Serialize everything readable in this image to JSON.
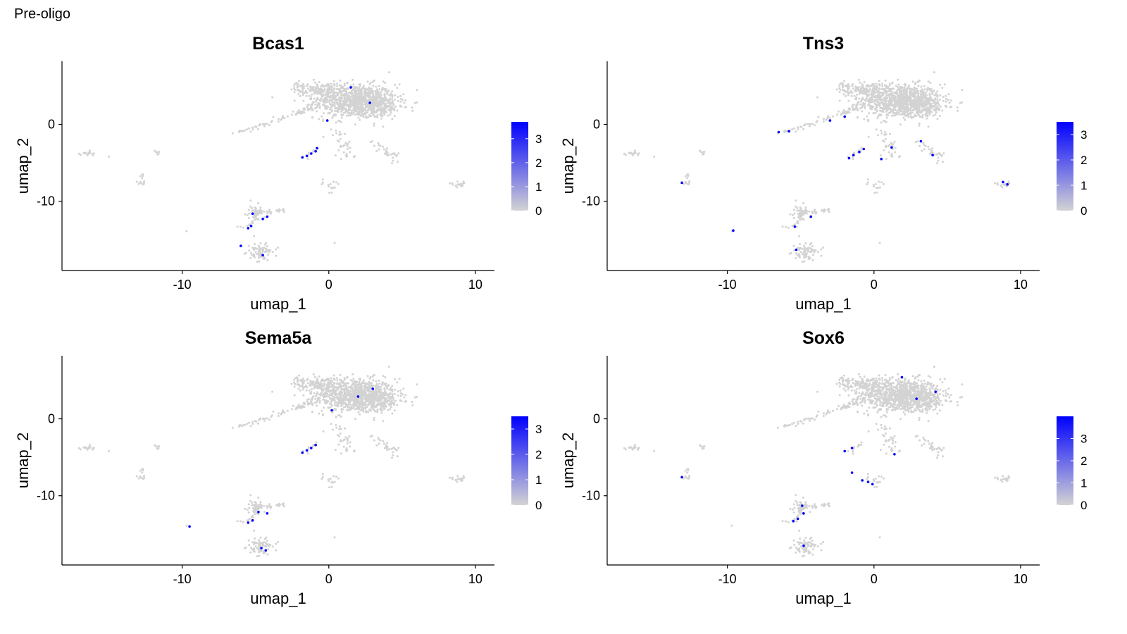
{
  "page_title": "Pre-oligo",
  "colors": {
    "low": "#d3d3d3",
    "high": "#0000ff",
    "axis": "#000000"
  },
  "chart_data": [
    {
      "type": "scatter",
      "title": "Bcas1",
      "xlabel": "umap_1",
      "ylabel": "umap_2",
      "xlim": [
        -18.2,
        11.3
      ],
      "ylim": [
        -19,
        8.2
      ],
      "xticks": [
        -10,
        0,
        10
      ],
      "yticks": [
        0,
        -10
      ],
      "grid": false,
      "legend": "right",
      "color_scale": {
        "min": 0,
        "max": 3.7,
        "ticks": [
          0,
          1,
          2,
          3
        ],
        "low": "#d3d3d3",
        "high": "#0000ff"
      },
      "expressing_points": [
        [
          -1.8,
          -4.3
        ],
        [
          -1.5,
          -4.1
        ],
        [
          -1.2,
          -3.8
        ],
        [
          -0.9,
          -3.5
        ],
        [
          -0.8,
          -3.1
        ],
        [
          -5.5,
          -13.5
        ],
        [
          -5.3,
          -13.2
        ],
        [
          -4.5,
          -12.3
        ],
        [
          -4.2,
          -12.0
        ],
        [
          -5.2,
          -11.6
        ],
        [
          -6.0,
          -15.8
        ],
        [
          -4.5,
          -17.0
        ],
        [
          2.8,
          2.8
        ],
        [
          1.5,
          4.8
        ],
        [
          -0.1,
          0.5
        ]
      ]
    },
    {
      "type": "scatter",
      "title": "Tns3",
      "xlabel": "umap_1",
      "ylabel": "umap_2",
      "xlim": [
        -18.2,
        11.3
      ],
      "ylim": [
        -19,
        8.2
      ],
      "xticks": [
        -10,
        0,
        10
      ],
      "yticks": [
        0,
        -10
      ],
      "grid": false,
      "legend": "right",
      "color_scale": {
        "min": 0,
        "max": 3.5,
        "ticks": [
          0,
          1,
          2,
          3
        ],
        "low": "#d3d3d3",
        "high": "#0000ff"
      },
      "expressing_points": [
        [
          -1.7,
          -4.4
        ],
        [
          -1.4,
          -4.0
        ],
        [
          -1.0,
          -3.6
        ],
        [
          -0.7,
          -3.2
        ],
        [
          -5.4,
          -13.3
        ],
        [
          -4.3,
          -12.0
        ],
        [
          -13.1,
          -7.6
        ],
        [
          -9.6,
          -13.8
        ],
        [
          8.8,
          -7.5
        ],
        [
          9.1,
          -7.8
        ],
        [
          -6.5,
          -1.0
        ],
        [
          -5.8,
          -0.9
        ],
        [
          -3.0,
          0.5
        ],
        [
          -2.0,
          1.0
        ],
        [
          0.5,
          -4.5
        ],
        [
          1.2,
          -3.0
        ],
        [
          3.2,
          -2.2
        ],
        [
          4.0,
          -4.0
        ],
        [
          -5.3,
          -16.3
        ]
      ]
    },
    {
      "type": "scatter",
      "title": "Sema5a",
      "xlabel": "umap_1",
      "ylabel": "umap_2",
      "xlim": [
        -18.2,
        11.3
      ],
      "ylim": [
        -19,
        8.2
      ],
      "xticks": [
        -10,
        0,
        10
      ],
      "yticks": [
        0,
        -10
      ],
      "grid": false,
      "legend": "right",
      "color_scale": {
        "min": 0,
        "max": 3.5,
        "ticks": [
          0,
          1,
          2,
          3
        ],
        "low": "#d3d3d3",
        "high": "#0000ff"
      },
      "expressing_points": [
        [
          -1.8,
          -4.4
        ],
        [
          -1.5,
          -4.1
        ],
        [
          -1.2,
          -3.8
        ],
        [
          -0.9,
          -3.4
        ],
        [
          -5.5,
          -13.5
        ],
        [
          -5.2,
          -13.2
        ],
        [
          -4.8,
          -12.1
        ],
        [
          -4.2,
          -12.3
        ],
        [
          -9.5,
          -14.0
        ],
        [
          -4.6,
          -16.8
        ],
        [
          -4.3,
          -17.1
        ],
        [
          3.0,
          3.9
        ],
        [
          0.2,
          1.1
        ],
        [
          2.0,
          2.9
        ]
      ]
    },
    {
      "type": "scatter",
      "title": "Sox6",
      "xlabel": "umap_1",
      "ylabel": "umap_2",
      "xlim": [
        -18.2,
        11.3
      ],
      "ylim": [
        -19,
        8.2
      ],
      "xticks": [
        -10,
        0,
        10
      ],
      "yticks": [
        0,
        -10
      ],
      "grid": false,
      "legend": "right",
      "color_scale": {
        "min": 0,
        "max": 4.0,
        "ticks": [
          0,
          1,
          2,
          3
        ],
        "low": "#d3d3d3",
        "high": "#0000ff"
      },
      "expressing_points": [
        [
          -0.1,
          -8.5
        ],
        [
          -0.4,
          -8.2
        ],
        [
          -0.8,
          -8.0
        ],
        [
          -1.5,
          -7.0
        ],
        [
          -5.5,
          -13.3
        ],
        [
          -5.2,
          -13.0
        ],
        [
          -4.8,
          -12.3
        ],
        [
          -4.9,
          -11.3
        ],
        [
          -2.0,
          -4.2
        ],
        [
          -1.5,
          -3.8
        ],
        [
          -13.1,
          -7.6
        ],
        [
          1.4,
          -4.6
        ],
        [
          1.9,
          5.4
        ],
        [
          4.2,
          3.5
        ],
        [
          2.9,
          2.6
        ],
        [
          -4.8,
          -16.5
        ]
      ]
    }
  ]
}
